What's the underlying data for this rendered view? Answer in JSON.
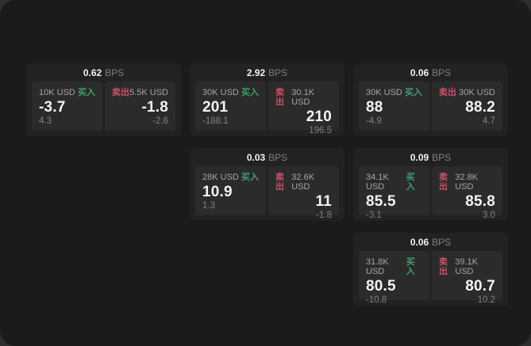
{
  "colors": {
    "outside_background": "#2e2e2e",
    "window_background": "#1b1b1b",
    "card_background": "#222222",
    "panel_background": "#2b2b2b",
    "text_primary": "#f2f2f2",
    "text_secondary": "#a6a6a6",
    "text_dim": "#808080",
    "buy_green": "#3ca06e",
    "sell_red": "#cc5068"
  },
  "cards": [
    {
      "bps_value": "0.62",
      "bps_unit": "BPS",
      "buy": {
        "amount": "10K USD",
        "side": "买入",
        "value": "-3.7",
        "sub": "4.3"
      },
      "sell": {
        "side": "卖出",
        "amount": "5.5K USD",
        "value": "-1.8",
        "sub": "-2.6"
      }
    },
    {
      "bps_value": "2.92",
      "bps_unit": "BPS",
      "buy": {
        "amount": "30K USD",
        "side": "买入",
        "value": "201",
        "sub": "-188.1"
      },
      "sell": {
        "side": "卖出",
        "amount": "30.1K USD",
        "value": "210",
        "sub": "196.5"
      }
    },
    {
      "bps_value": "0.06",
      "bps_unit": "BPS",
      "buy": {
        "amount": "30K USD",
        "side": "买入",
        "value": "88",
        "sub": "-4.9"
      },
      "sell": {
        "side": "卖出",
        "amount": "30K USD",
        "value": "88.2",
        "sub": "4.7"
      }
    },
    {
      "bps_value": "0.03",
      "bps_unit": "BPS",
      "buy": {
        "amount": "28K USD",
        "side": "买入",
        "value": "10.9",
        "sub": "1.3"
      },
      "sell": {
        "side": "卖出",
        "amount": "32.6K USD",
        "value": "11",
        "sub": "-1.8"
      }
    },
    {
      "bps_value": "0.09",
      "bps_unit": "BPS",
      "buy": {
        "amount": "34.1K USD",
        "side": "买入",
        "value": "85.5",
        "sub": "-3.1"
      },
      "sell": {
        "side": "卖出",
        "amount": "32.8K USD",
        "value": "85.8",
        "sub": "3.0"
      }
    },
    {
      "bps_value": "0.06",
      "bps_unit": "BPS",
      "buy": {
        "amount": "31.8K USD",
        "side": "买入",
        "value": "80.5",
        "sub": "-10.8"
      },
      "sell": {
        "side": "卖出",
        "amount": "39.1K USD",
        "value": "80.7",
        "sub": "10.2"
      }
    }
  ]
}
